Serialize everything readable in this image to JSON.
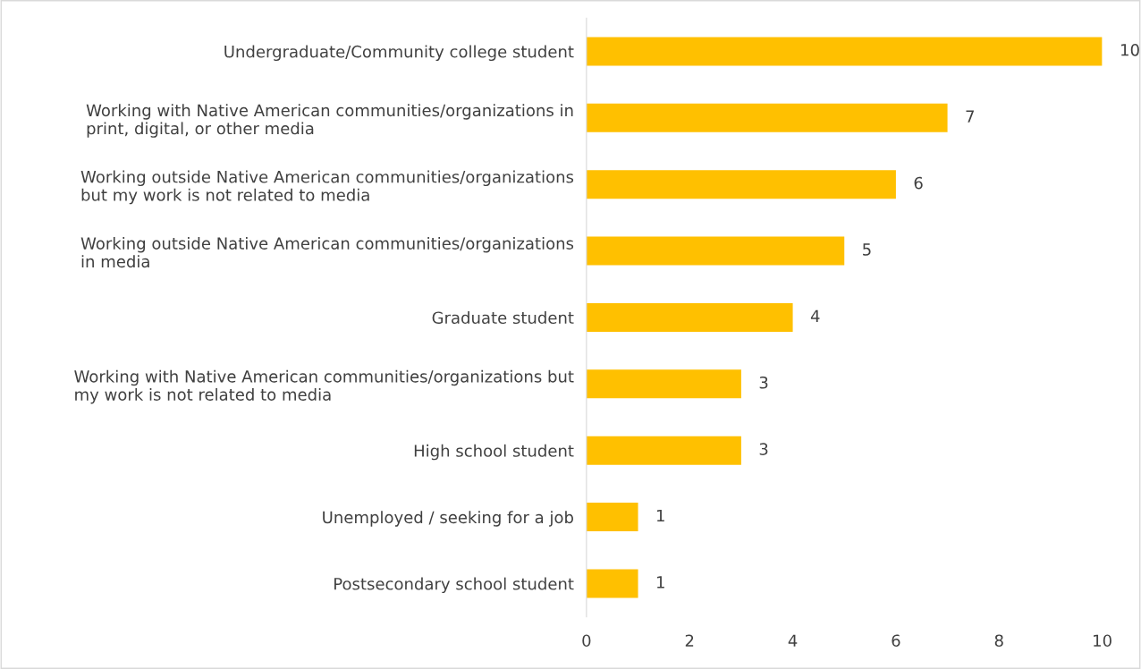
{
  "chart_data": {
    "type": "bar",
    "orientation": "horizontal",
    "categories": [
      "Undergraduate/Community college student",
      "Working with Native American communities/organizations in\nprint, digital, or other media",
      "Working outside Native American communities/organizations\nbut my work is not related to media",
      "Working outside Native American communities/organizations\nin media",
      "Graduate student",
      "Working with Native American communities/organizations but\nmy work is not related to media",
      "High school student",
      "Unemployed / seeking for a job",
      "Postsecondary school student"
    ],
    "values": [
      10,
      7,
      6,
      5,
      4,
      3,
      3,
      1,
      1
    ],
    "color": "#ffc000",
    "xlim": [
      0,
      10
    ],
    "xticks": [
      0,
      2,
      4,
      6,
      8,
      10
    ],
    "data_labels": true,
    "grid": false,
    "legend": false
  }
}
